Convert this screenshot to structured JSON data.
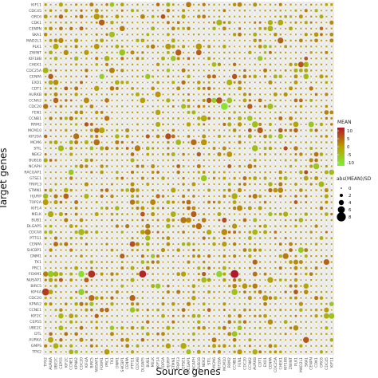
{
  "chart_data": {
    "type": "bubble-heatmap",
    "xlabel": "Source genes",
    "ylabel": "Target genes",
    "y_categories": [
      "KIF11",
      "CDC45",
      "ORC6",
      "CDK1",
      "CENPN",
      "SKA1",
      "MAD2L1",
      "PLK1",
      "ZWINT",
      "KIF18B",
      "CHEK1",
      "CDC25A",
      "CENPA",
      "EXO1",
      "CDT1",
      "AURKB",
      "CCNA2",
      "CDC20",
      "FEN1",
      "CCNB1",
      "RRM2",
      "MCM10",
      "KIF20A",
      "MCM6",
      "STIL",
      "NEK2",
      "BUB1B",
      "NCAPH",
      "RACGAP1",
      "GTSE1",
      "TRIP13",
      "STMN1",
      "HJURP",
      "TOP2A",
      "KIF14",
      "MELK",
      "BUB1",
      "DLGAP5",
      "CDCA8",
      "PTTG1",
      "CENPA",
      "SHCBP1",
      "DNM1",
      "TK1",
      "PRC1",
      "FOXM1",
      "NUSAP1",
      "BIRC5",
      "KIF4A",
      "CDC20",
      "KPNA2",
      "CCNE1",
      "KIF2C",
      "CEP55",
      "UBE2C",
      "DTL",
      "AURKA",
      "GMPS",
      "TPX2"
    ],
    "x_categories": [
      "TPX2",
      "AURKA",
      "UBE2C",
      "CEP55",
      "KIF2C",
      "CCNE1",
      "KPNA2",
      "CDC20",
      "KIF4A",
      "BIRC5",
      "NUSAP1",
      "FOXM1",
      "PRC1",
      "TK1",
      "DNM1",
      "SHCBP1",
      "CENPA",
      "PTTG1",
      "CDCA8",
      "DLGAP5",
      "BUB1",
      "MELK",
      "KIF14",
      "TOP2A",
      "HJURP",
      "STMN1",
      "TRIP13",
      "GTSE1",
      "RACGAP1",
      "NCAPH",
      "BUB1B",
      "NEK2",
      "STIL",
      "MCM6",
      "KIF20A",
      "MCM10",
      "RRM2",
      "CCNB1",
      "FEN1",
      "CDC20",
      "CCNA2",
      "AURKB",
      "CDT1",
      "EXO1",
      "CENPA",
      "CDC25A",
      "CHEK1",
      "KIF18B",
      "ZWINT",
      "PLK1",
      "MAD2L1",
      "SKA1",
      "CENPN",
      "CDK1",
      "ORC6",
      "CDC45",
      "KIF11"
    ],
    "legend": {
      "color_title": "MEAN",
      "color_ticks": [
        "10",
        "5",
        "0",
        "-5",
        "-10"
      ],
      "size_title": "abs(MEAN)/SD",
      "size_ticks": [
        "0",
        "2",
        "4",
        "6",
        "8"
      ],
      "placement": "right"
    },
    "colors": {
      "high": "#b2182b",
      "mid": "#b8a000",
      "low": "#7cf03c",
      "background": "#ebebeb",
      "grid": "#ffffff"
    },
    "grid": true,
    "highlights": [
      {
        "target": "FOXM1",
        "source": "DLGAP5",
        "mean": 11,
        "size": 6
      },
      {
        "target": "FOXM1",
        "source": "BIRC5",
        "mean": 10,
        "size": 6
      },
      {
        "target": "FOXM1",
        "source": "CDC20",
        "mean": -9,
        "size": 5
      },
      {
        "target": "FOXM1",
        "source": "AURKA",
        "mean": -6,
        "size": 5
      },
      {
        "target": "FOXM1",
        "source": "KIF20A",
        "mean": -8,
        "size": 5
      },
      {
        "target": "FOXM1",
        "source": "CCNB1",
        "mean": 12,
        "size": 7
      },
      {
        "target": "FOXM1",
        "source": "TPX2",
        "mean": 3,
        "size": 4
      },
      {
        "target": "FOXM1",
        "source": "UBE2C",
        "mean": -3,
        "size": 4
      },
      {
        "target": "KIF4A",
        "source": "TPX2",
        "mean": 9,
        "size": 6
      },
      {
        "target": "KIF4A",
        "source": "CDC20",
        "mean": -7,
        "size": 5
      },
      {
        "target": "KIF4A",
        "source": "CCNB1",
        "mean": -5,
        "size": 5
      },
      {
        "target": "CDC20",
        "source": "MCM10",
        "mean": -10,
        "size": 6
      },
      {
        "target": "CDC20",
        "source": "CCNA2",
        "mean": 6,
        "size": 4
      },
      {
        "target": "CDC20",
        "source": "TPX2",
        "mean": 4,
        "size": 4
      },
      {
        "target": "CENPA",
        "source": "FOXM1",
        "mean": -7,
        "size": 4
      },
      {
        "target": "CENPA",
        "source": "AURKA",
        "mean": 6,
        "size": 4
      },
      {
        "target": "CENPA",
        "source": "CCNB1",
        "mean": 7,
        "size": 4
      },
      {
        "target": "CENPA",
        "source": "BUB1",
        "mean": -6,
        "size": 4
      },
      {
        "target": "CCNA2",
        "source": "KIF20A",
        "mean": 7,
        "size": 5
      },
      {
        "target": "CCNA2",
        "source": "MCM6",
        "mean": -7,
        "size": 4
      },
      {
        "target": "MCM10",
        "source": "NUSAP1",
        "mean": 5,
        "size": 4
      },
      {
        "target": "TOP2A",
        "source": "PTTG1",
        "mean": 4,
        "size": 4
      },
      {
        "target": "BIRC5",
        "source": "KIF14",
        "mean": -6,
        "size": 4
      },
      {
        "target": "PTTG1",
        "source": "BUB1",
        "mean": -4,
        "size": 4
      },
      {
        "target": "CCNB1",
        "source": "PRC1",
        "mean": 4,
        "size": 4
      }
    ]
  }
}
